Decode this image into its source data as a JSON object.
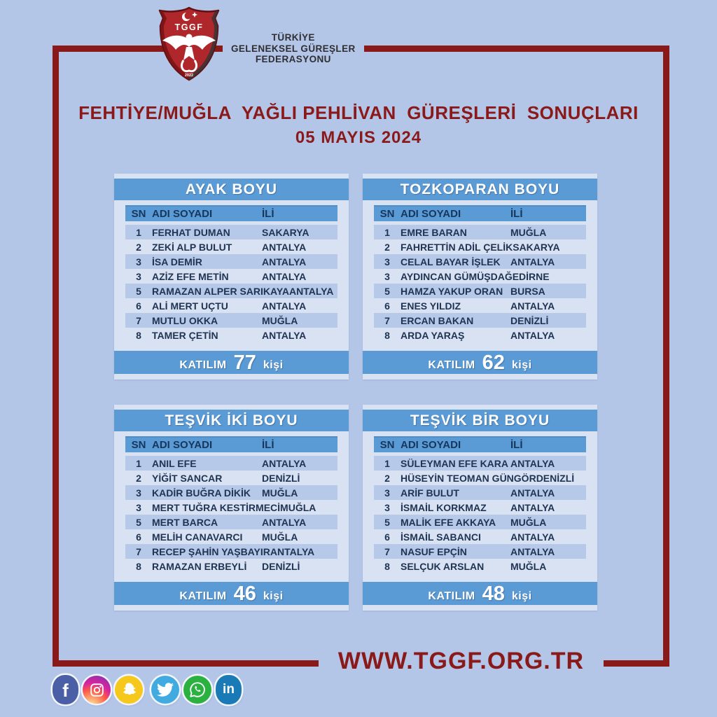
{
  "colors": {
    "page_background": "#b4c6e8",
    "panel_background": "#d9e2f3",
    "bar_blue": "#5b9bd5",
    "row_alt_blue": "#b7c9e8",
    "accent_dark_red": "#8a1a1a",
    "header_text_navy": "#17365d",
    "shield_red": "#b0272b"
  },
  "header": {
    "logo": {
      "abbr": "TGGF",
      "year": "2022"
    },
    "org_name_line1": "TÜRKİYE",
    "org_name_line2": "GELENEKSEL GÜREŞLER",
    "org_name_line3": "FEDERASYONU",
    "title_line1": "FEHTİYE/MUĞLA  YAĞLI PEHLİVAN  GÜREŞLERİ  SONUÇLARI",
    "title_line2": "05 MAYIS 2024"
  },
  "tables": [
    {
      "title": "AYAK BOYU",
      "columns": [
        "SN",
        "ADI SOYADI",
        "İLİ"
      ],
      "rows": [
        {
          "sn": "1",
          "name": "FERHAT DUMAN",
          "city": "SAKARYA"
        },
        {
          "sn": "2",
          "name": "ZEKİ ALP BULUT",
          "city": "ANTALYA"
        },
        {
          "sn": "3",
          "name": "İSA DEMİR",
          "city": "ANTALYA"
        },
        {
          "sn": "3",
          "name": "AZİZ EFE METİN",
          "city": "ANTALYA"
        },
        {
          "sn": "5",
          "name": "RAMAZAN ALPER SARIKAYA",
          "city": "ANTALYA"
        },
        {
          "sn": "6",
          "name": "ALİ MERT UÇTU",
          "city": "ANTALYA"
        },
        {
          "sn": "7",
          "name": "MUTLU OKKA",
          "city": "MUĞLA"
        },
        {
          "sn": "8",
          "name": "TAMER ÇETİN",
          "city": "ANTALYA"
        }
      ],
      "participation_label": "KATILIM",
      "participation_count": "77",
      "participation_unit": "kişi"
    },
    {
      "title": "TOZKOPARAN BOYU",
      "columns": [
        "SN",
        "ADI SOYADI",
        "İLİ"
      ],
      "rows": [
        {
          "sn": "1",
          "name": "EMRE BARAN",
          "city": "MUĞLA"
        },
        {
          "sn": "2",
          "name": "FAHRETTİN ADİL ÇELİK",
          "city": "SAKARYA"
        },
        {
          "sn": "3",
          "name": "CELAL BAYAR İŞLEK",
          "city": "ANTALYA"
        },
        {
          "sn": "3",
          "name": "AYDINCAN GÜMÜŞDAĞ",
          "city": "EDİRNE"
        },
        {
          "sn": "5",
          "name": "HAMZA YAKUP ORAN",
          "city": "BURSA"
        },
        {
          "sn": "6",
          "name": "ENES YILDIZ",
          "city": "ANTALYA"
        },
        {
          "sn": "7",
          "name": "ERCAN BAKAN",
          "city": "DENİZLİ"
        },
        {
          "sn": "8",
          "name": "ARDA YARAŞ",
          "city": "ANTALYA"
        }
      ],
      "participation_label": "KATILIM",
      "participation_count": "62",
      "participation_unit": "kişi"
    },
    {
      "title": "TEŞVİK İKİ BOYU",
      "columns": [
        "SN",
        "ADI SOYADI",
        "İLİ"
      ],
      "rows": [
        {
          "sn": "1",
          "name": "ANIL EFE",
          "city": "ANTALYA"
        },
        {
          "sn": "2",
          "name": "YİĞİT SANCAR",
          "city": "DENİZLİ"
        },
        {
          "sn": "3",
          "name": "KADİR BUĞRA DİKİK",
          "city": "MUĞLA"
        },
        {
          "sn": "3",
          "name": "MERT TUĞRA KESTİRMECİ",
          "city": "MUĞLA"
        },
        {
          "sn": "5",
          "name": "MERT BARCA",
          "city": "ANTALYA"
        },
        {
          "sn": "6",
          "name": "MELİH CANAVARCI",
          "city": "MUĞLA"
        },
        {
          "sn": "7",
          "name": "RECEP ŞAHİN YAŞBAYIR",
          "city": "ANTALYA"
        },
        {
          "sn": "8",
          "name": "RAMAZAN ERBEYLİ",
          "city": "DENİZLİ"
        }
      ],
      "participation_label": "KATILIM",
      "participation_count": "46",
      "participation_unit": "kişi"
    },
    {
      "title": "TEŞVİK BİR BOYU",
      "columns": [
        "SN",
        "ADI SOYADI",
        "İLİ"
      ],
      "rows": [
        {
          "sn": "1",
          "name": "SÜLEYMAN EFE KARA",
          "city": "ANTALYA"
        },
        {
          "sn": "2",
          "name": "HÜSEYİN TEOMAN GÜNGÖR",
          "city": "DENİZLİ"
        },
        {
          "sn": "3",
          "name": "ARİF BULUT",
          "city": "ANTALYA"
        },
        {
          "sn": "3",
          "name": "İSMAİL KORKMAZ",
          "city": "ANTALYA"
        },
        {
          "sn": "5",
          "name": "MALİK EFE AKKAYA",
          "city": "MUĞLA"
        },
        {
          "sn": "6",
          "name": "İSMAİL SABANCI",
          "city": "ANTALYA"
        },
        {
          "sn": "7",
          "name": "NASUF EPÇİN",
          "city": "ANTALYA"
        },
        {
          "sn": "8",
          "name": "SELÇUK ARSLAN",
          "city": "MUĞLA"
        }
      ],
      "participation_label": "KATILIM",
      "participation_count": "48",
      "participation_unit": "kişi"
    }
  ],
  "footer": {
    "website": "WWW.TGGF.ORG.TR",
    "social_icons": [
      {
        "name": "facebook-icon",
        "color": "#4a5fa5"
      },
      {
        "name": "instagram-icon",
        "color": "#d6249f"
      },
      {
        "name": "snapchat-icon",
        "color": "#f6c81c"
      },
      {
        "name": "twitter-icon",
        "color": "#41abe1"
      },
      {
        "name": "whatsapp-icon",
        "color": "#2ab140"
      },
      {
        "name": "linkedin-icon",
        "color": "#1a7ab5"
      }
    ],
    "facebook_glyph": "f",
    "linkedin_glyph": "in"
  }
}
